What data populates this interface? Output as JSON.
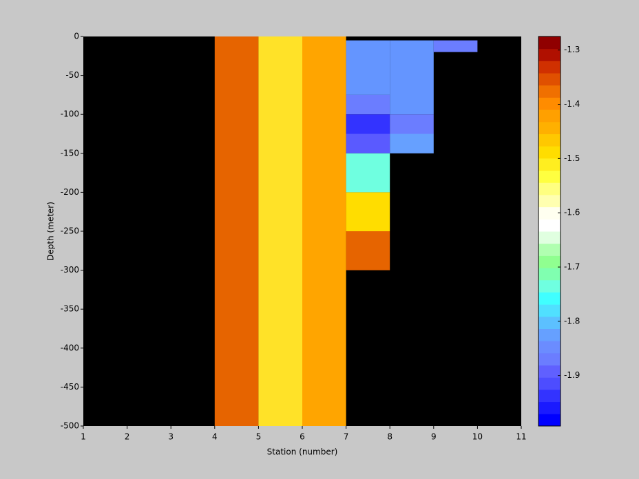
{
  "chart_data": {
    "type": "heatmap",
    "xlabel": "Station (number)",
    "ylabel": "Depth (meter)",
    "xlim": [
      1,
      11
    ],
    "xticks": [
      1,
      2,
      3,
      4,
      5,
      6,
      7,
      8,
      9,
      10,
      11
    ],
    "ylim": [
      -500,
      0
    ],
    "yticks": [
      0,
      -50,
      -100,
      -150,
      -200,
      -250,
      -300,
      -350,
      -400,
      -450,
      -500
    ],
    "background": "#000000",
    "cells": [
      {
        "station": [
          4,
          5
        ],
        "depth": [
          0,
          -500
        ],
        "value": -1.37,
        "color": "#e66400"
      },
      {
        "station": [
          5,
          6
        ],
        "depth": [
          0,
          -500
        ],
        "value": -1.49,
        "color": "#ffe228"
      },
      {
        "station": [
          6,
          7
        ],
        "depth": [
          0,
          -500
        ],
        "value": -1.42,
        "color": "#ffa500"
      },
      {
        "station": [
          7,
          8
        ],
        "depth": [
          -5,
          -75
        ],
        "value": -1.88,
        "color": "#6495ff"
      },
      {
        "station": [
          7,
          8
        ],
        "depth": [
          -75,
          -100
        ],
        "value": -1.91,
        "color": "#6b7dff"
      },
      {
        "station": [
          7,
          8
        ],
        "depth": [
          -100,
          -125
        ],
        "value": -1.95,
        "color": "#3333ff"
      },
      {
        "station": [
          7,
          8
        ],
        "depth": [
          -125,
          -150
        ],
        "value": -1.92,
        "color": "#5a5aff"
      },
      {
        "station": [
          7,
          8
        ],
        "depth": [
          -150,
          -200
        ],
        "value": -1.79,
        "color": "#6fffe0"
      },
      {
        "station": [
          7,
          8
        ],
        "depth": [
          -200,
          -250
        ],
        "value": -1.47,
        "color": "#ffdd00"
      },
      {
        "station": [
          7,
          8
        ],
        "depth": [
          -250,
          -300
        ],
        "value": -1.37,
        "color": "#e66400"
      },
      {
        "station": [
          8,
          9
        ],
        "depth": [
          -5,
          -100
        ],
        "value": -1.88,
        "color": "#6495ff"
      },
      {
        "station": [
          8,
          9
        ],
        "depth": [
          -100,
          -125
        ],
        "value": -1.91,
        "color": "#6b7dff"
      },
      {
        "station": [
          8,
          9
        ],
        "depth": [
          -125,
          -150
        ],
        "value": -1.87,
        "color": "#66a0ff"
      },
      {
        "station": [
          9,
          10
        ],
        "depth": [
          -5,
          -20
        ],
        "value": -1.91,
        "color": "#6b7dff"
      }
    ],
    "colorbar": {
      "clim": [
        -1.993,
        -1.275
      ],
      "ticks": [
        -1.3,
        -1.4,
        -1.5,
        -1.6,
        -1.7,
        -1.8,
        -1.9
      ],
      "colormap": [
        "#0000ff",
        "#1a1aff",
        "#3333ff",
        "#4d4dff",
        "#6060ff",
        "#6b7dff",
        "#6b8cff",
        "#66a0ff",
        "#5cc0ff",
        "#50e0ff",
        "#40ffff",
        "#6fffe0",
        "#80ffb0",
        "#90ff90",
        "#b0ffb0",
        "#e0ffe0",
        "#ffffff",
        "#fffff0",
        "#ffffb0",
        "#ffff80",
        "#ffff40",
        "#ffee20",
        "#ffdd00",
        "#ffc800",
        "#ffb000",
        "#ffa000",
        "#ff8c00",
        "#f07000",
        "#e05000",
        "#d03000",
        "#b01000",
        "#900000"
      ]
    }
  }
}
